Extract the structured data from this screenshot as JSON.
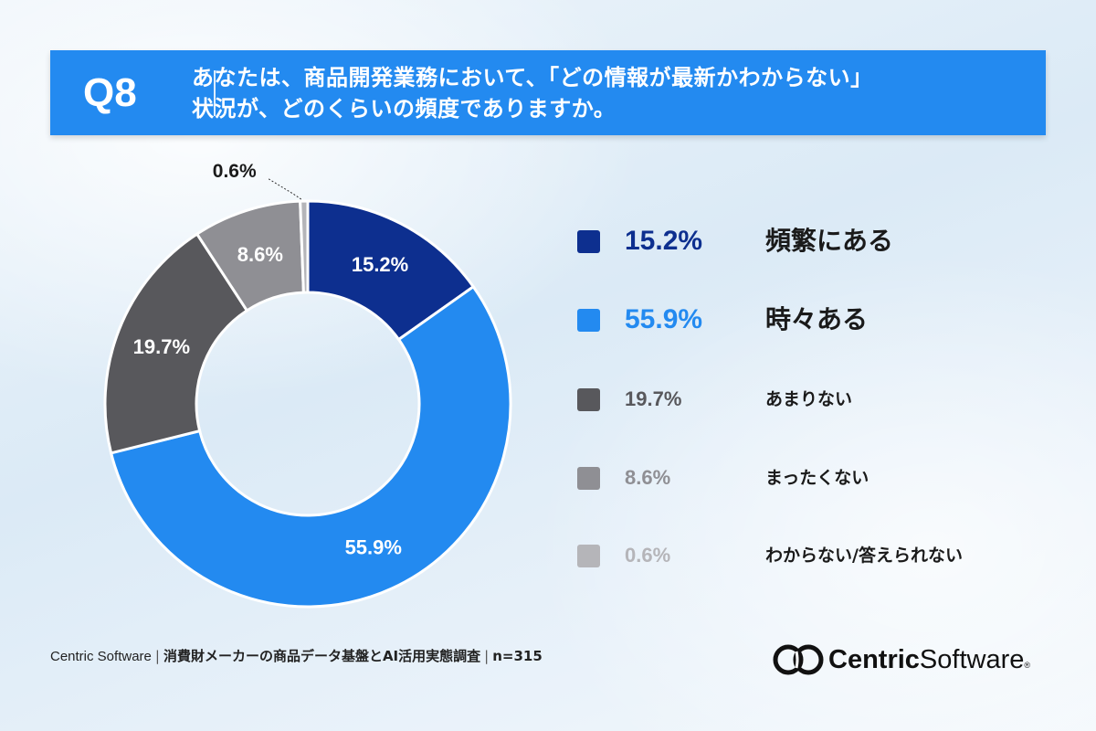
{
  "header": {
    "question_number": "Q8",
    "question_line1": "あなたは、商品開発業務において、「どの情報が最新かわからない」",
    "question_line2": "状況が、どのくらいの頻度でありますか。"
  },
  "chart_data": {
    "type": "pie",
    "donut": true,
    "unit": "%",
    "slices": [
      {
        "label": "頻繁にある",
        "value": 15.2,
        "display": "15.2%",
        "color": "#0d2f8f"
      },
      {
        "label": "時々ある",
        "value": 55.9,
        "display": "55.9%",
        "color": "#238af0"
      },
      {
        "label": "あまりない",
        "value": 19.7,
        "display": "19.7%",
        "color": "#58585c"
      },
      {
        "label": "まったくない",
        "value": 8.6,
        "display": "8.6%",
        "color": "#8f8f94"
      },
      {
        "label": "わからない/答えられない",
        "value": 0.6,
        "display": "0.6%",
        "color": "#b5b5b9"
      }
    ]
  },
  "legend": {
    "items": [
      {
        "value": "15.2%",
        "label": "頻繁にある",
        "color": "#0d2f8f",
        "emphasis": true
      },
      {
        "value": "55.9%",
        "label": "時々ある",
        "color": "#238af0",
        "emphasis": true
      },
      {
        "value": "19.7%",
        "label": "あまりない",
        "color": "#58585c",
        "emphasis": false
      },
      {
        "value": "8.6%",
        "label": "まったくない",
        "color": "#8f8f94",
        "emphasis": false
      },
      {
        "value": "0.6%",
        "label": "わからない/答えられない",
        "color": "#b5b5b9",
        "emphasis": false
      }
    ]
  },
  "footer": {
    "brand": "Centric Software",
    "separator": "|",
    "survey": "消費財メーカーの商品データ基盤とAI活用実態調査",
    "sample": "n=315"
  },
  "logo": {
    "strong": "Centric",
    "light": "Software",
    "mark": "®"
  }
}
